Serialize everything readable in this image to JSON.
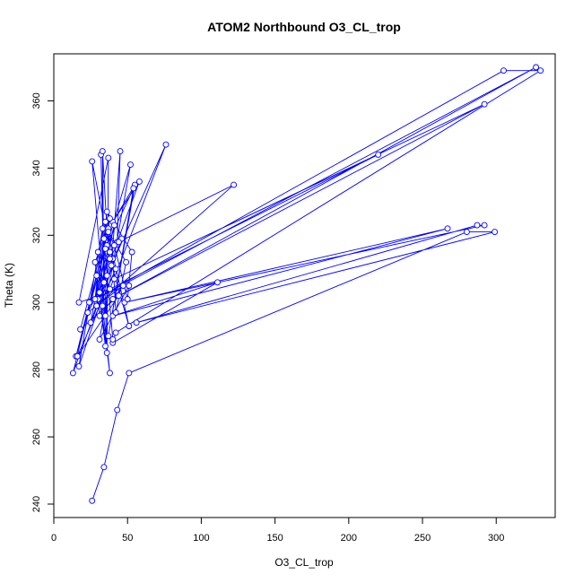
{
  "chart_data": {
    "type": "line",
    "title": "ATOM2 Northbound O3_CL_trop",
    "xlabel": "O3_CL_trop",
    "ylabel": "Theta (K)",
    "xlim": [
      0,
      340
    ],
    "ylim": [
      236,
      374
    ],
    "xticks": [
      0,
      50,
      100,
      150,
      200,
      250,
      300
    ],
    "yticks": [
      240,
      260,
      280,
      300,
      320,
      340,
      360
    ],
    "grid": false,
    "legend": "none",
    "series_color": "#0000ff",
    "marker": "open-circle",
    "series": [
      {
        "points": [
          [
            26,
            241
          ],
          [
            34,
            251
          ],
          [
            43,
            268
          ],
          [
            51,
            279
          ],
          [
            280,
            321
          ],
          [
            299,
            321
          ],
          [
            56,
            294
          ],
          [
            287,
            323
          ],
          [
            292,
            323
          ],
          [
            48,
            300
          ],
          [
            267,
            322
          ],
          [
            40,
            296
          ],
          [
            111,
            306
          ],
          [
            40,
            288
          ],
          [
            42,
            291
          ],
          [
            330,
            369
          ],
          [
            305,
            369
          ],
          [
            24,
            300
          ],
          [
            327,
            370
          ],
          [
            40,
            301
          ],
          [
            292,
            359
          ],
          [
            41,
            307
          ],
          [
            220,
            344
          ],
          [
            38,
            304
          ],
          [
            76,
            347
          ],
          [
            39,
            311
          ],
          [
            45,
            345
          ],
          [
            43,
            318
          ],
          [
            58,
            336
          ],
          [
            40,
            324
          ],
          [
            55,
            335
          ],
          [
            37,
            290
          ],
          [
            54,
            334
          ],
          [
            36,
            317
          ],
          [
            52,
            341
          ],
          [
            31,
            289
          ],
          [
            51,
            305
          ],
          [
            17,
            300
          ],
          [
            37,
            343
          ],
          [
            36,
            285
          ],
          [
            32,
            344
          ],
          [
            34,
            306
          ],
          [
            33,
            345
          ],
          [
            36,
            322
          ],
          [
            49,
            312
          ],
          [
            42,
            297
          ],
          [
            40,
            313
          ],
          [
            30,
            301
          ],
          [
            35,
            316
          ],
          [
            15,
            284
          ],
          [
            37,
            322
          ],
          [
            13,
            279
          ],
          [
            46,
            319
          ],
          [
            17,
            281
          ],
          [
            33,
            322
          ],
          [
            28,
            301
          ],
          [
            41,
            323
          ],
          [
            31,
            303
          ],
          [
            38,
            315
          ],
          [
            26,
            342
          ],
          [
            35,
            296
          ],
          [
            30,
            315
          ],
          [
            42,
            310
          ],
          [
            16,
            284
          ],
          [
            44,
            302
          ],
          [
            18,
            292
          ],
          [
            38,
            325
          ],
          [
            25,
            294
          ],
          [
            36,
            308
          ],
          [
            23,
            297
          ],
          [
            47,
            305
          ],
          [
            31,
            296
          ],
          [
            29,
            308
          ],
          [
            35,
            287
          ],
          [
            37,
            321
          ],
          [
            41,
            317
          ],
          [
            50,
            301
          ],
          [
            53,
            315
          ],
          [
            36,
            327
          ],
          [
            29,
            299
          ],
          [
            122,
            335
          ],
          [
            44,
            318
          ],
          [
            38,
            313
          ],
          [
            51,
            293
          ],
          [
            35,
            324
          ],
          [
            33,
            299
          ],
          [
            38,
            279
          ],
          [
            28,
            312
          ],
          [
            34,
            319
          ],
          [
            40,
            289
          ]
        ]
      }
    ]
  }
}
